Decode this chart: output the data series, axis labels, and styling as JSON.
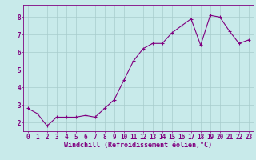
{
  "x": [
    0,
    1,
    2,
    3,
    4,
    5,
    6,
    7,
    8,
    9,
    10,
    11,
    12,
    13,
    14,
    15,
    16,
    17,
    18,
    19,
    20,
    21,
    22,
    23
  ],
  "y": [
    2.8,
    2.5,
    1.8,
    2.3,
    2.3,
    2.3,
    2.4,
    2.3,
    2.8,
    3.3,
    4.4,
    5.5,
    6.2,
    6.5,
    6.5,
    7.1,
    7.5,
    7.9,
    6.4,
    8.1,
    8.0,
    7.2,
    6.5,
    6.7
  ],
  "line_color": "#800080",
  "marker": "+",
  "marker_color": "#800080",
  "bg_color": "#c8eaea",
  "grid_color": "#a8cccc",
  "xlabel": "Windchill (Refroidissement éolien,°C)",
  "ylim": [
    1.5,
    8.7
  ],
  "xlim": [
    -0.5,
    23.5
  ],
  "yticks": [
    2,
    3,
    4,
    5,
    6,
    7,
    8
  ],
  "xticks": [
    0,
    1,
    2,
    3,
    4,
    5,
    6,
    7,
    8,
    9,
    10,
    11,
    12,
    13,
    14,
    15,
    16,
    17,
    18,
    19,
    20,
    21,
    22,
    23
  ],
  "tick_color": "#800080",
  "xlabel_color": "#800080",
  "xlabel_fontsize": 6.0,
  "tick_fontsize": 5.5,
  "line_width": 0.8,
  "marker_size": 2.5
}
